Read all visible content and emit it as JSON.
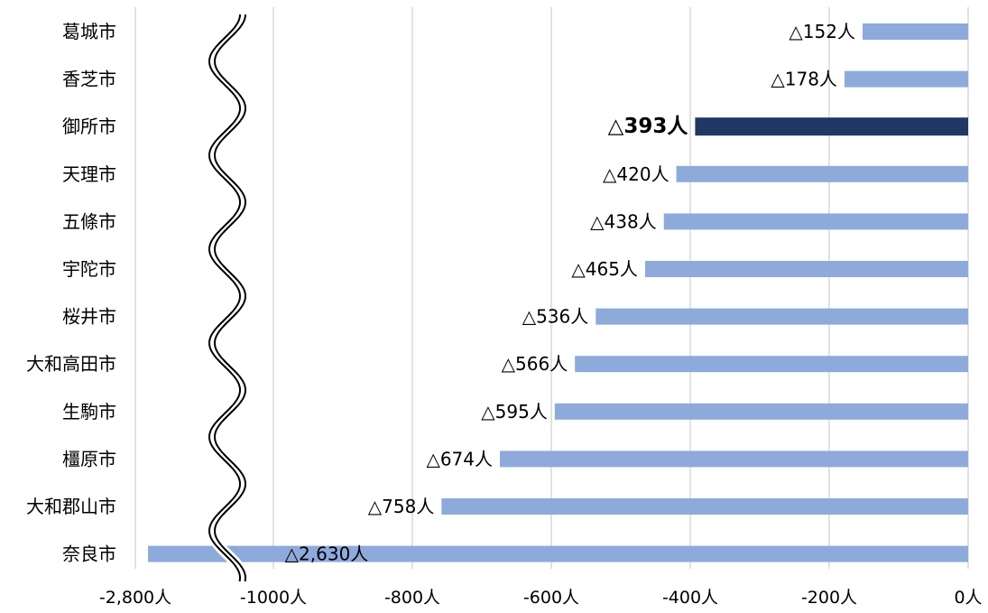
{
  "chart_data": {
    "type": "bar",
    "orientation": "horizontal",
    "categories": [
      "葛城市",
      "香芝市",
      "御所市",
      "天理市",
      "五條市",
      "宇陀市",
      "桜井市",
      "大和高田市",
      "生駒市",
      "橿原市",
      "大和郡山市",
      "奈良市"
    ],
    "values": [
      -152,
      -178,
      -393,
      -420,
      -438,
      -465,
      -536,
      -566,
      -595,
      -674,
      -758,
      -2630
    ],
    "data_labels": [
      "△152人",
      "△178人",
      "△393人",
      "△420人",
      "△438人",
      "△465人",
      "△536人",
      "△566人",
      "△595人",
      "△674人",
      "△758人",
      "△2,630人"
    ],
    "highlight_category": "御所市",
    "x_tick_labels": [
      "-2,800人",
      "-1000人",
      "-800人",
      "-600人",
      "-400人",
      "-200人",
      "0人"
    ],
    "x_axis_break": "-1000人 to -2,800人 (axis break shown by wavy double line)",
    "xlim": [
      -1200,
      0
    ],
    "grid": "vertical",
    "colors": {
      "bar": "#8eaadb",
      "highlight_bar": "#1f3864",
      "grid": "#d9d9d9",
      "break_line": "#000000"
    }
  }
}
